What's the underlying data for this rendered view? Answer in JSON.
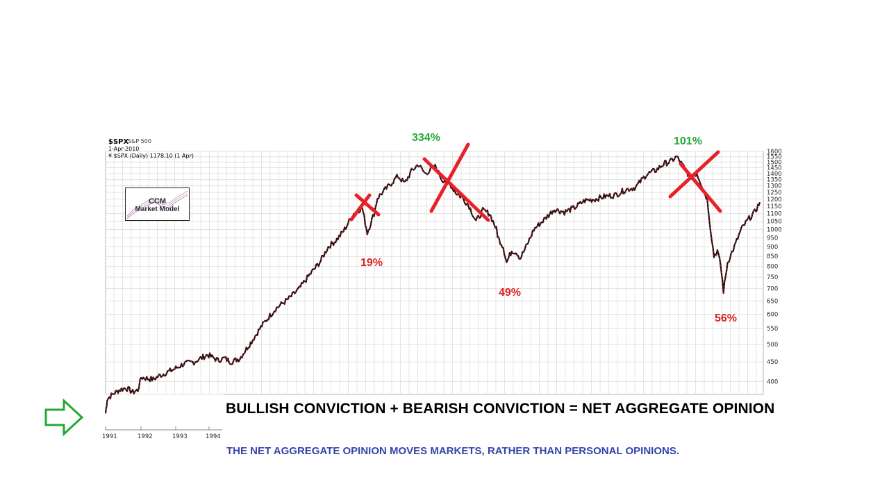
{
  "header": {
    "symbol": "$SPX",
    "name": "S&P 500",
    "date": "1-Apr-2010",
    "series_label": "¥ $SPX (Daily) 1178.10 (1 Apr)"
  },
  "logo": {
    "line1": "CCM",
    "line2": "Market Model"
  },
  "annotations": {
    "gain_1": "334%",
    "gain_2": "101%",
    "drop_1": "19%",
    "drop_2": "49%",
    "drop_3": "56%"
  },
  "colors": {
    "bullish": "#22aa33",
    "bearish": "#dd2222",
    "cross": "#e8202a",
    "subline": "#3344aa",
    "arrow": "#22aa33"
  },
  "icons": {
    "arrow": "right-arrow-outline-icon"
  },
  "headline": "BULLISH CONVICTION + BEARISH CONVICTION = NET AGGREGATE OPINION",
  "subline": "THE NET AGGREGATE OPINION MOVES MARKETS, RATHER THAN PERSONAL OPINIONS.",
  "chart_data": {
    "type": "line",
    "scale": "log",
    "ylim": [
      370,
      1600
    ],
    "y_ticks": [
      400,
      450,
      500,
      550,
      600,
      650,
      700,
      750,
      800,
      850,
      900,
      950,
      1000,
      1050,
      1100,
      1150,
      1200,
      1250,
      1300,
      1350,
      1400,
      1450,
      1500,
      1550,
      1600
    ],
    "x_tick_labels": [
      "1991",
      "1992",
      "1993",
      "1994"
    ],
    "grid": true,
    "series": [
      {
        "x": [
          "1991.00",
          "1991.05",
          "1991.20",
          "1991.40",
          "1991.60",
          "1991.80",
          "1991.95",
          "1992.05",
          "1992.40",
          "1992.60",
          "1993.00",
          "1993.30",
          "1993.60",
          "1994.00",
          "1994.30",
          "1994.50",
          "1994.70",
          "1994.95",
          "1995.30",
          "1995.60",
          "1996.00",
          "1996.40",
          "1996.70",
          "1997.00",
          "1997.30",
          "1997.55",
          "1997.80",
          "1998.00",
          "1998.30",
          "1998.55",
          "1998.70",
          "1998.90",
          "1999.00",
          "1999.30",
          "1999.60",
          "1999.80",
          "2000.00",
          "2000.20",
          "2000.40",
          "2000.70",
          "2000.90",
          "2001.10",
          "2001.30",
          "2001.50",
          "2001.70",
          "2001.90",
          "2002.10",
          "2002.30",
          "2002.50",
          "2002.55",
          "2002.70",
          "2002.80",
          "2002.95",
          "2003.10",
          "2003.20",
          "2003.40",
          "2003.60",
          "2003.90",
          "2004.20",
          "2004.50",
          "2004.80",
          "2005.10",
          "2005.40",
          "2005.70",
          "2006.00",
          "2006.30",
          "2006.60",
          "2006.90",
          "2007.20",
          "2007.45",
          "2007.60",
          "2007.80",
          "2008.00",
          "2008.20",
          "2008.40",
          "2008.55",
          "2008.70",
          "2008.80",
          "2008.90",
          "2009.00",
          "2009.10",
          "2009.18",
          "2009.30",
          "2009.50",
          "2009.70",
          "2009.90",
          "2010.10",
          "2010.25"
        ],
        "y": [
          330,
          360,
          370,
          380,
          385,
          375,
          380,
          410,
          405,
          415,
          430,
          445,
          450,
          470,
          455,
          460,
          450,
          460,
          510,
          560,
          620,
          660,
          700,
          760,
          820,
          900,
          940,
          990,
          1100,
          1140,
          980,
          1100,
          1210,
          1290,
          1380,
          1320,
          1420,
          1480,
          1400,
          1460,
          1350,
          1330,
          1250,
          1210,
          1150,
          1050,
          1120,
          1100,
          1000,
          950,
          900,
          820,
          880,
          870,
          840,
          910,
          1000,
          1060,
          1130,
          1110,
          1140,
          1190,
          1200,
          1220,
          1230,
          1270,
          1290,
          1390,
          1430,
          1490,
          1500,
          1550,
          1460,
          1370,
          1400,
          1300,
          1200,
          1000,
          850,
          880,
          800,
          690,
          820,
          900,
          1000,
          1060,
          1110,
          1178
        ]
      }
    ]
  }
}
